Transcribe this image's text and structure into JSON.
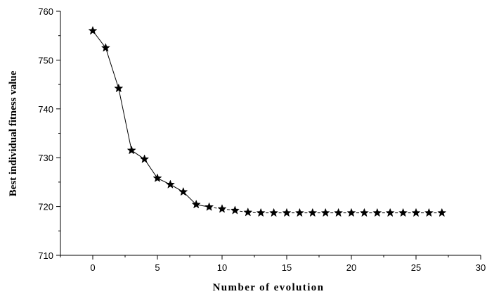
{
  "chart_data": {
    "type": "line",
    "title": "",
    "xlabel": "Number of evolution",
    "ylabel": "Best individual fitness value",
    "xlim": [
      -2.5,
      30
    ],
    "ylim": [
      710,
      760
    ],
    "xticks": [
      0,
      5,
      10,
      15,
      20,
      25,
      30
    ],
    "yticks": [
      710,
      720,
      730,
      740,
      750,
      760
    ],
    "grid": false,
    "marker": "star",
    "line_style": "solid-then-dashed",
    "color": "#000000",
    "series": [
      {
        "x": [
          0,
          1,
          2,
          3,
          4,
          5,
          6,
          7,
          8,
          9,
          10,
          11,
          12,
          13,
          14,
          15,
          16,
          17,
          18,
          19,
          20,
          21,
          22,
          23,
          24,
          25,
          26,
          27
        ],
        "values": [
          756.0,
          752.5,
          744.2,
          731.5,
          729.7,
          725.8,
          724.5,
          723.0,
          720.4,
          719.9,
          719.5,
          719.2,
          718.8,
          718.7,
          718.7,
          718.7,
          718.7,
          718.7,
          718.7,
          718.7,
          718.7,
          718.7,
          718.7,
          718.7,
          718.7,
          718.7,
          718.7,
          718.7
        ]
      }
    ]
  }
}
